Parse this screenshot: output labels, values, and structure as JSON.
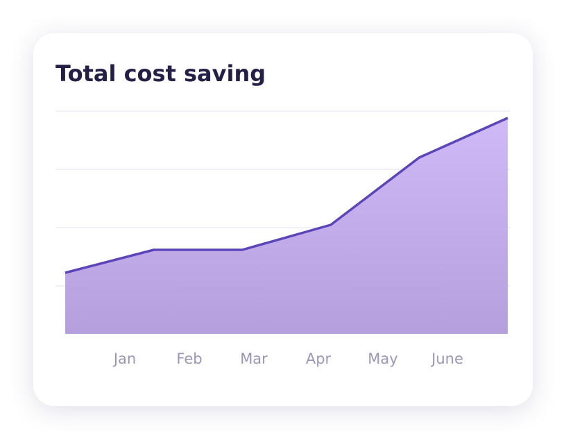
{
  "chart_data": {
    "type": "area",
    "title": "Total cost saving",
    "categories": [
      "Jan",
      "Feb",
      "Mar",
      "Apr",
      "May",
      "June"
    ],
    "values": [
      88,
      121,
      121,
      157,
      254,
      311
    ],
    "ylim": [
      0,
      321
    ],
    "yticks": [
      69,
      153,
      237,
      321
    ],
    "grid": true,
    "color": "#5b45b8"
  }
}
